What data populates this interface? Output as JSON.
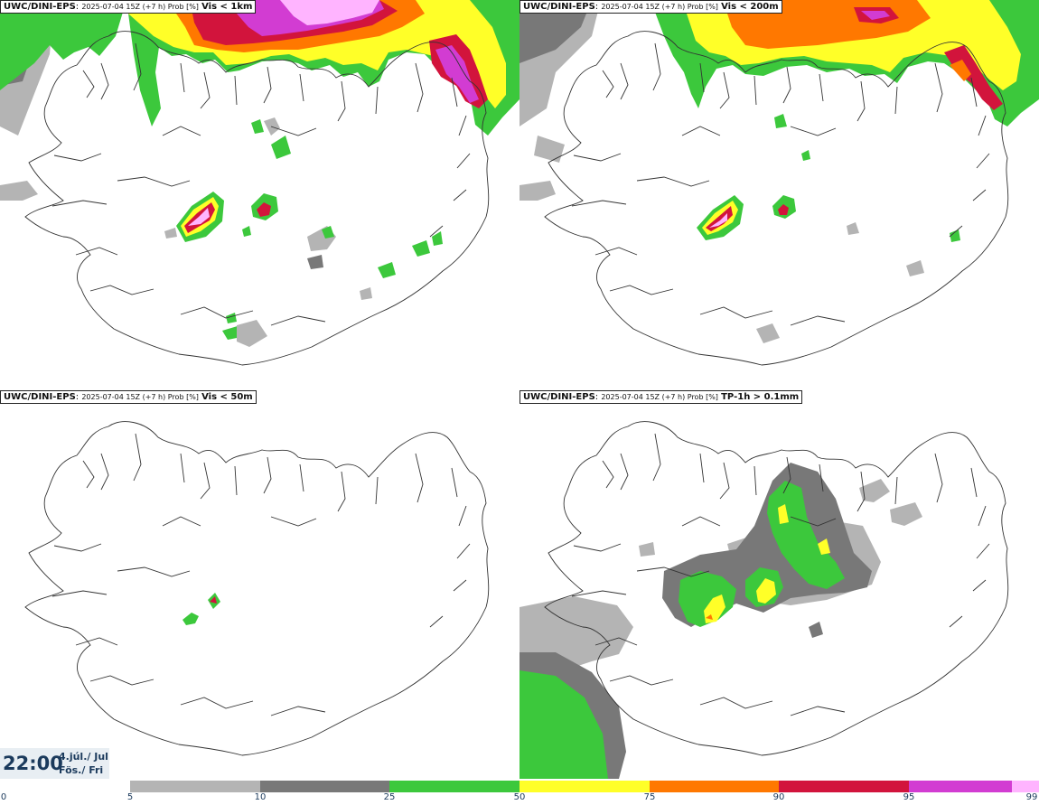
{
  "panels": [
    {
      "model": "UWC/DINI-EPS",
      "run": "2025-07-04 15Z (+7 h) Prob [%]",
      "variable": "Vis < 1km"
    },
    {
      "model": "UWC/DINI-EPS",
      "run": "2025-07-04 15Z (+7 h) Prob [%]",
      "variable": "Vis < 200m"
    },
    {
      "model": "UWC/DINI-EPS",
      "run": "2025-07-04 15Z (+7 h) Prob [%]",
      "variable": "Vis < 50m"
    },
    {
      "model": "UWC/DINI-EPS",
      "run": "2025-07-04 15Z (+7 h) Prob [%]",
      "variable": "TP-1h > 0.1mm"
    }
  ],
  "timestamp": {
    "time": "22:00",
    "date_line1": "4.júl./ Jul",
    "date_line2": "Fös./ Fri"
  },
  "colorbar": {
    "ticks": [
      "0",
      "5",
      "10",
      "25",
      "50",
      "75",
      "90",
      "95",
      "99"
    ],
    "colors": [
      "#ffffff",
      "#b4b4b4",
      "#787878",
      "#3cc83c",
      "#ffff28",
      "#ff7800",
      "#d2143c",
      "#d23cd2",
      "#ffb4ff"
    ]
  }
}
